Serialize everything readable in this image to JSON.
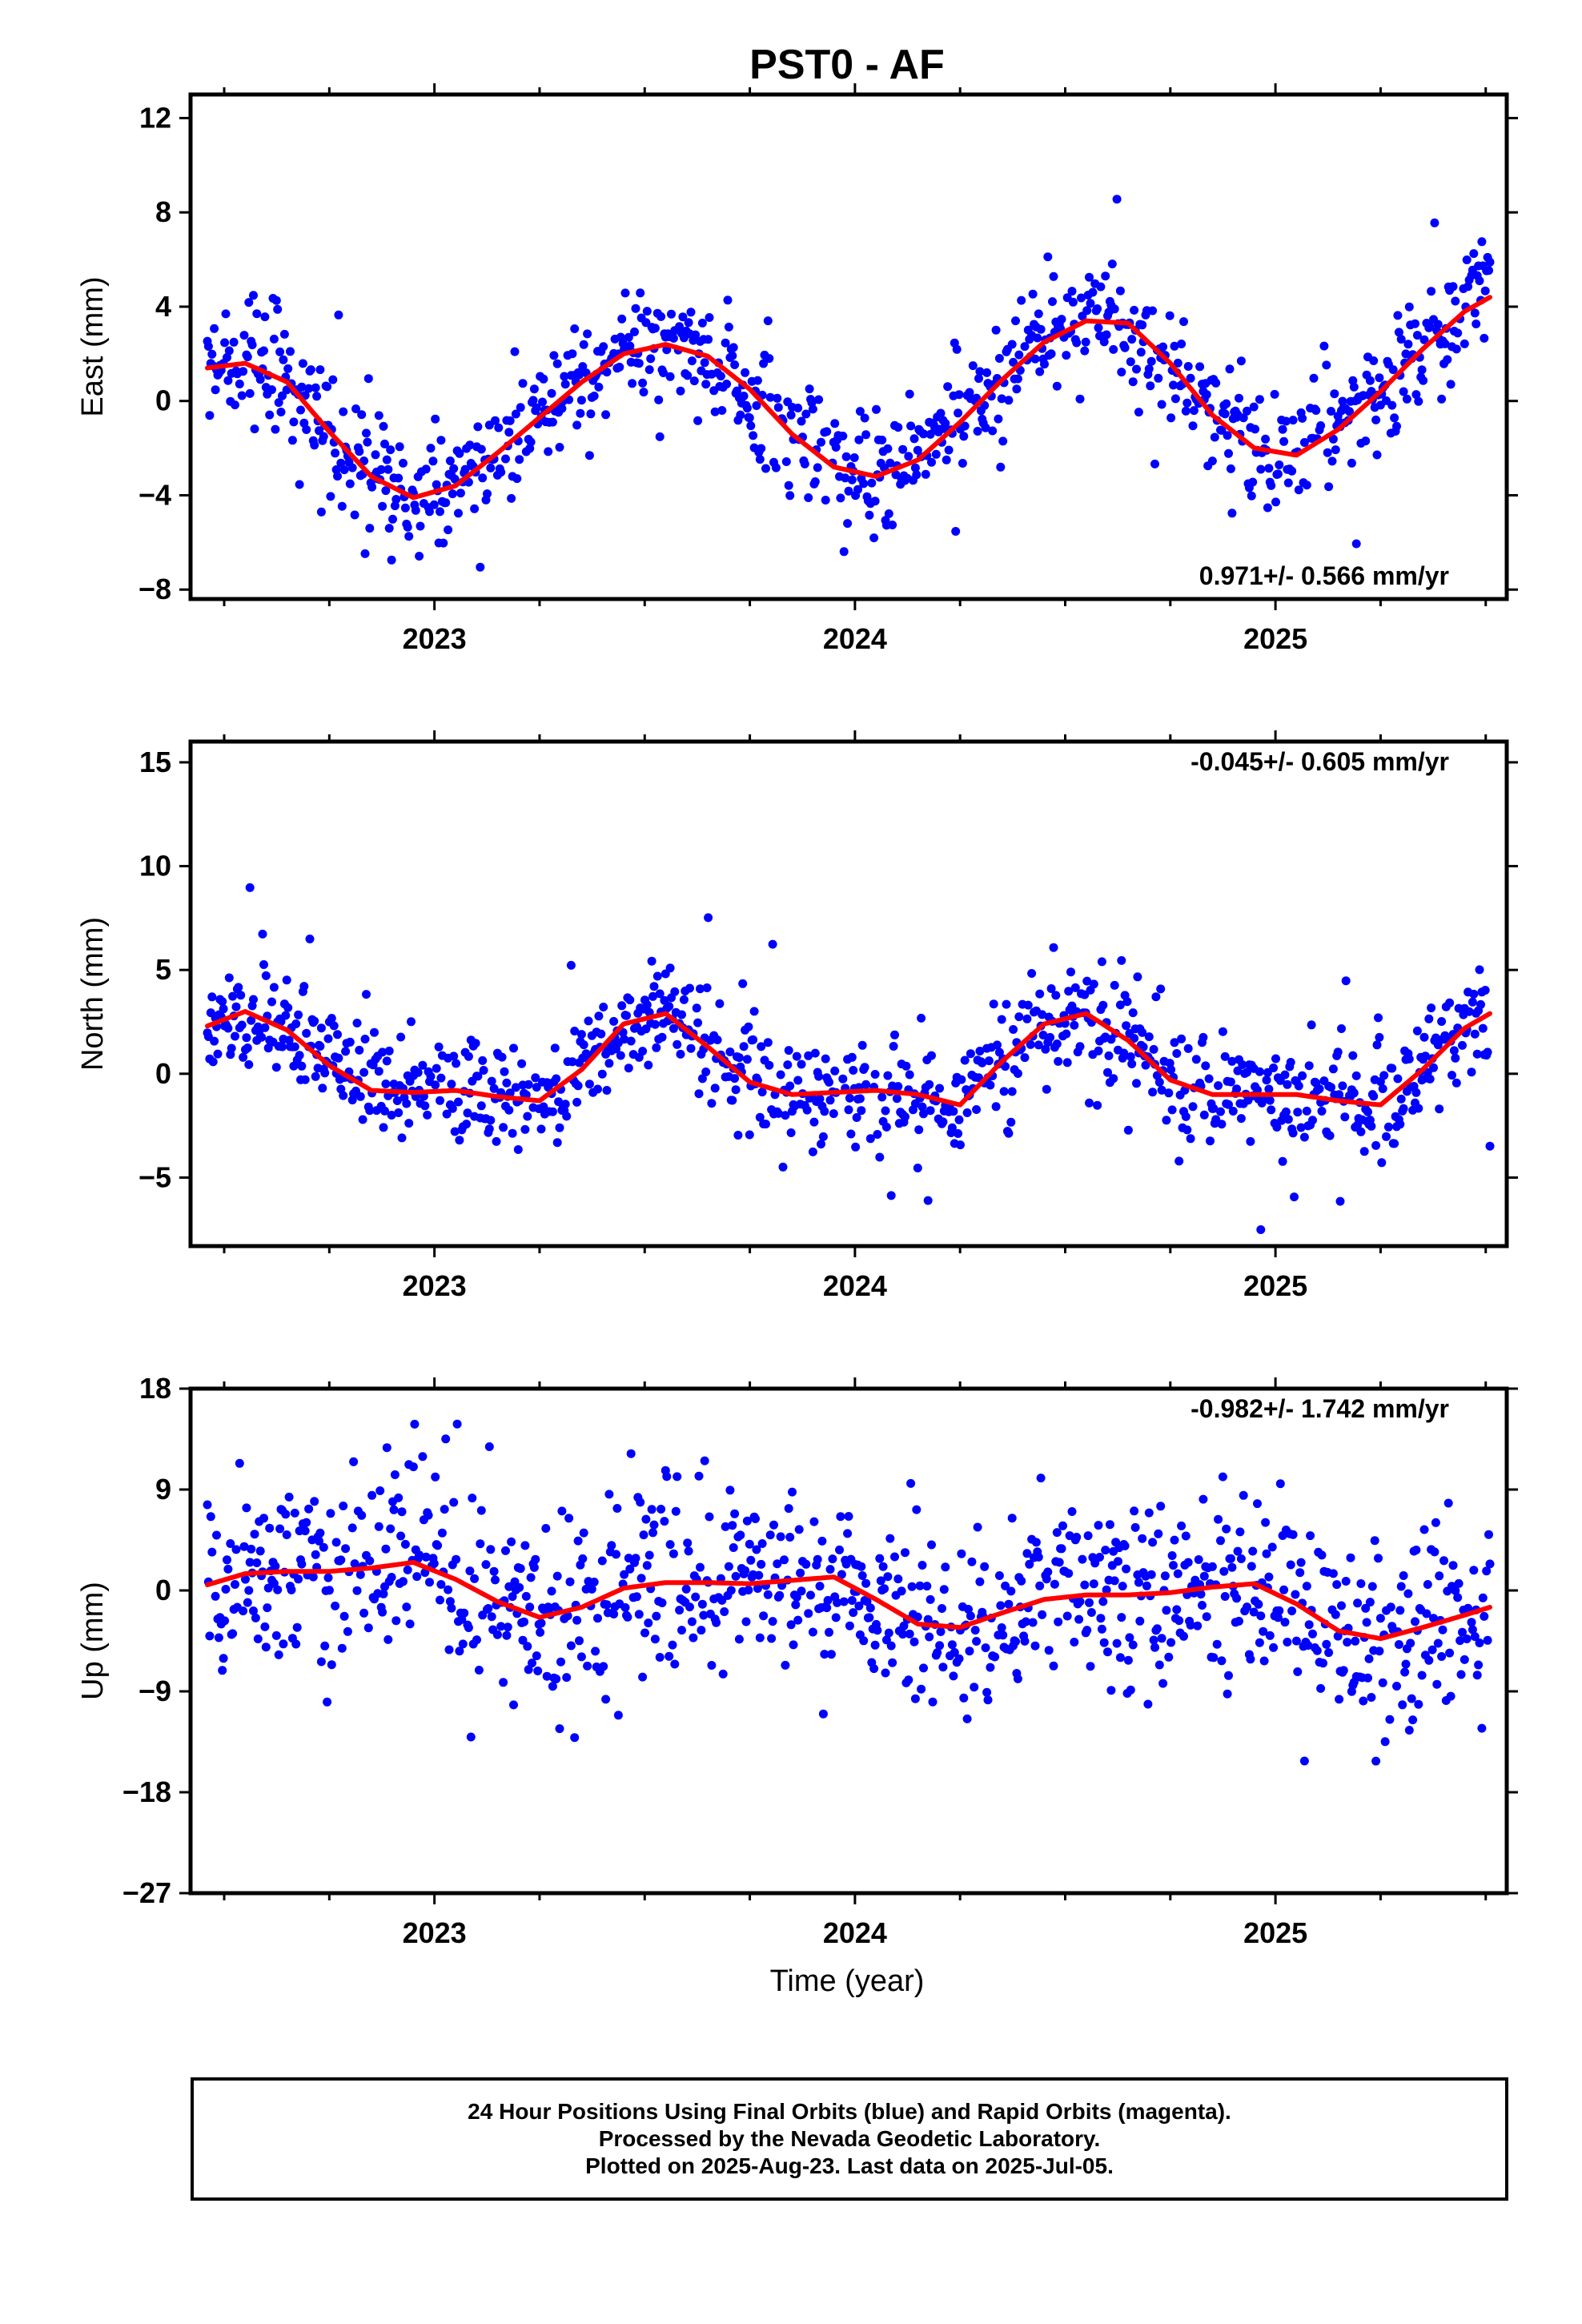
{
  "title": "PST0 - AF",
  "colors": {
    "points": "#0000ff",
    "fit": "#ff0000",
    "axis": "#000000"
  },
  "xlabel": "Time (year)",
  "xlim": [
    2022.42,
    2025.55
  ],
  "xticks": [
    2023,
    2024,
    2025
  ],
  "footer": {
    "line1": "24 Hour Positions Using Final Orbits (blue) and Rapid Orbits (magenta).",
    "line2": "Processed by the Nevada Geodetic Laboratory.",
    "line3": "Plotted on 2025-Aug-23. Last data on 2025-Jul-05."
  },
  "chart_data": [
    {
      "type": "scatter",
      "name": "east",
      "ylabel": "East (mm)",
      "ylim": [
        -8.4,
        13.0
      ],
      "yticks": [
        -8,
        -4,
        0,
        4,
        8,
        12
      ],
      "annotation": "0.971+/- 0.566 mm/yr",
      "annotation_pos": "bottom-right",
      "series": [
        {
          "role": "daily positions (final orbits)",
          "x_range": [
            2022.46,
            2025.51
          ]
        },
        {
          "role": "model fit",
          "x": [
            2022.46,
            2022.55,
            2022.65,
            2022.75,
            2022.85,
            2022.95,
            2023.05,
            2023.15,
            2023.25,
            2023.35,
            2023.45,
            2023.55,
            2023.65,
            2023.75,
            2023.85,
            2023.95,
            2024.05,
            2024.15,
            2024.25,
            2024.35,
            2024.45,
            2024.55,
            2024.65,
            2024.75,
            2024.85,
            2024.95,
            2025.05,
            2025.15,
            2025.25,
            2025.35,
            2025.45,
            2025.51
          ],
          "y": [
            1.4,
            1.6,
            0.8,
            -1.3,
            -3.2,
            -4.1,
            -3.6,
            -2.2,
            -0.7,
            0.8,
            2.0,
            2.4,
            1.9,
            0.5,
            -1.4,
            -2.8,
            -3.2,
            -2.5,
            -0.9,
            0.9,
            2.5,
            3.4,
            3.3,
            1.6,
            -0.6,
            -2.0,
            -2.3,
            -1.2,
            0.4,
            2.2,
            3.8,
            4.4
          ]
        }
      ]
    },
    {
      "type": "scatter",
      "name": "north",
      "ylabel": "North (mm)",
      "ylim": [
        -8.3,
        16.0
      ],
      "yticks": [
        -5,
        0,
        5,
        10,
        15
      ],
      "annotation": "-0.045+/- 0.605 mm/yr",
      "annotation_pos": "top-right",
      "series": [
        {
          "role": "daily positions (final orbits)",
          "x_range": [
            2022.46,
            2025.51
          ]
        },
        {
          "role": "model fit",
          "x": [
            2022.46,
            2022.55,
            2022.65,
            2022.75,
            2022.85,
            2022.95,
            2023.05,
            2023.15,
            2023.25,
            2023.35,
            2023.45,
            2023.55,
            2023.65,
            2023.75,
            2023.85,
            2023.95,
            2024.05,
            2024.15,
            2024.25,
            2024.35,
            2024.45,
            2024.55,
            2024.65,
            2024.75,
            2024.85,
            2024.95,
            2025.05,
            2025.15,
            2025.25,
            2025.35,
            2025.45,
            2025.51
          ],
          "y": [
            2.3,
            3.0,
            2.1,
            0.4,
            -0.8,
            -0.9,
            -0.8,
            -1.1,
            -1.3,
            0.2,
            2.4,
            2.9,
            1.3,
            -0.4,
            -1.0,
            -0.9,
            -0.8,
            -1.0,
            -1.5,
            0.6,
            2.4,
            2.9,
            1.6,
            -0.3,
            -1.0,
            -1.0,
            -1.0,
            -1.3,
            -1.5,
            0.2,
            2.2,
            2.9
          ]
        }
      ]
    },
    {
      "type": "scatter",
      "name": "up",
      "ylabel": "Up (mm)",
      "ylim": [
        -27,
        18
      ],
      "yticks": [
        -27,
        -18,
        -9,
        0,
        9,
        18
      ],
      "annotation": "-0.982+/- 1.742 mm/yr",
      "annotation_pos": "top-right",
      "series": [
        {
          "role": "daily positions (final orbits)",
          "x_range": [
            2022.46,
            2025.51
          ]
        },
        {
          "role": "model fit",
          "x": [
            2022.46,
            2022.55,
            2022.65,
            2022.75,
            2022.85,
            2022.95,
            2023.05,
            2023.15,
            2023.25,
            2023.35,
            2023.45,
            2023.55,
            2023.65,
            2023.75,
            2023.85,
            2023.95,
            2024.05,
            2024.15,
            2024.25,
            2024.35,
            2024.45,
            2024.55,
            2024.65,
            2024.75,
            2024.85,
            2024.95,
            2025.05,
            2025.15,
            2025.25,
            2025.35,
            2025.45,
            2025.51
          ],
          "y": [
            0.5,
            1.5,
            1.7,
            1.7,
            2.0,
            2.5,
            1.0,
            -1.0,
            -2.4,
            -1.5,
            0.2,
            0.7,
            0.7,
            0.6,
            0.9,
            1.2,
            -0.8,
            -3.0,
            -3.3,
            -2.0,
            -0.8,
            -0.4,
            -0.4,
            -0.2,
            0.3,
            0.6,
            -1.2,
            -3.6,
            -4.3,
            -3.3,
            -2.2,
            -1.5
          ]
        }
      ]
    }
  ]
}
